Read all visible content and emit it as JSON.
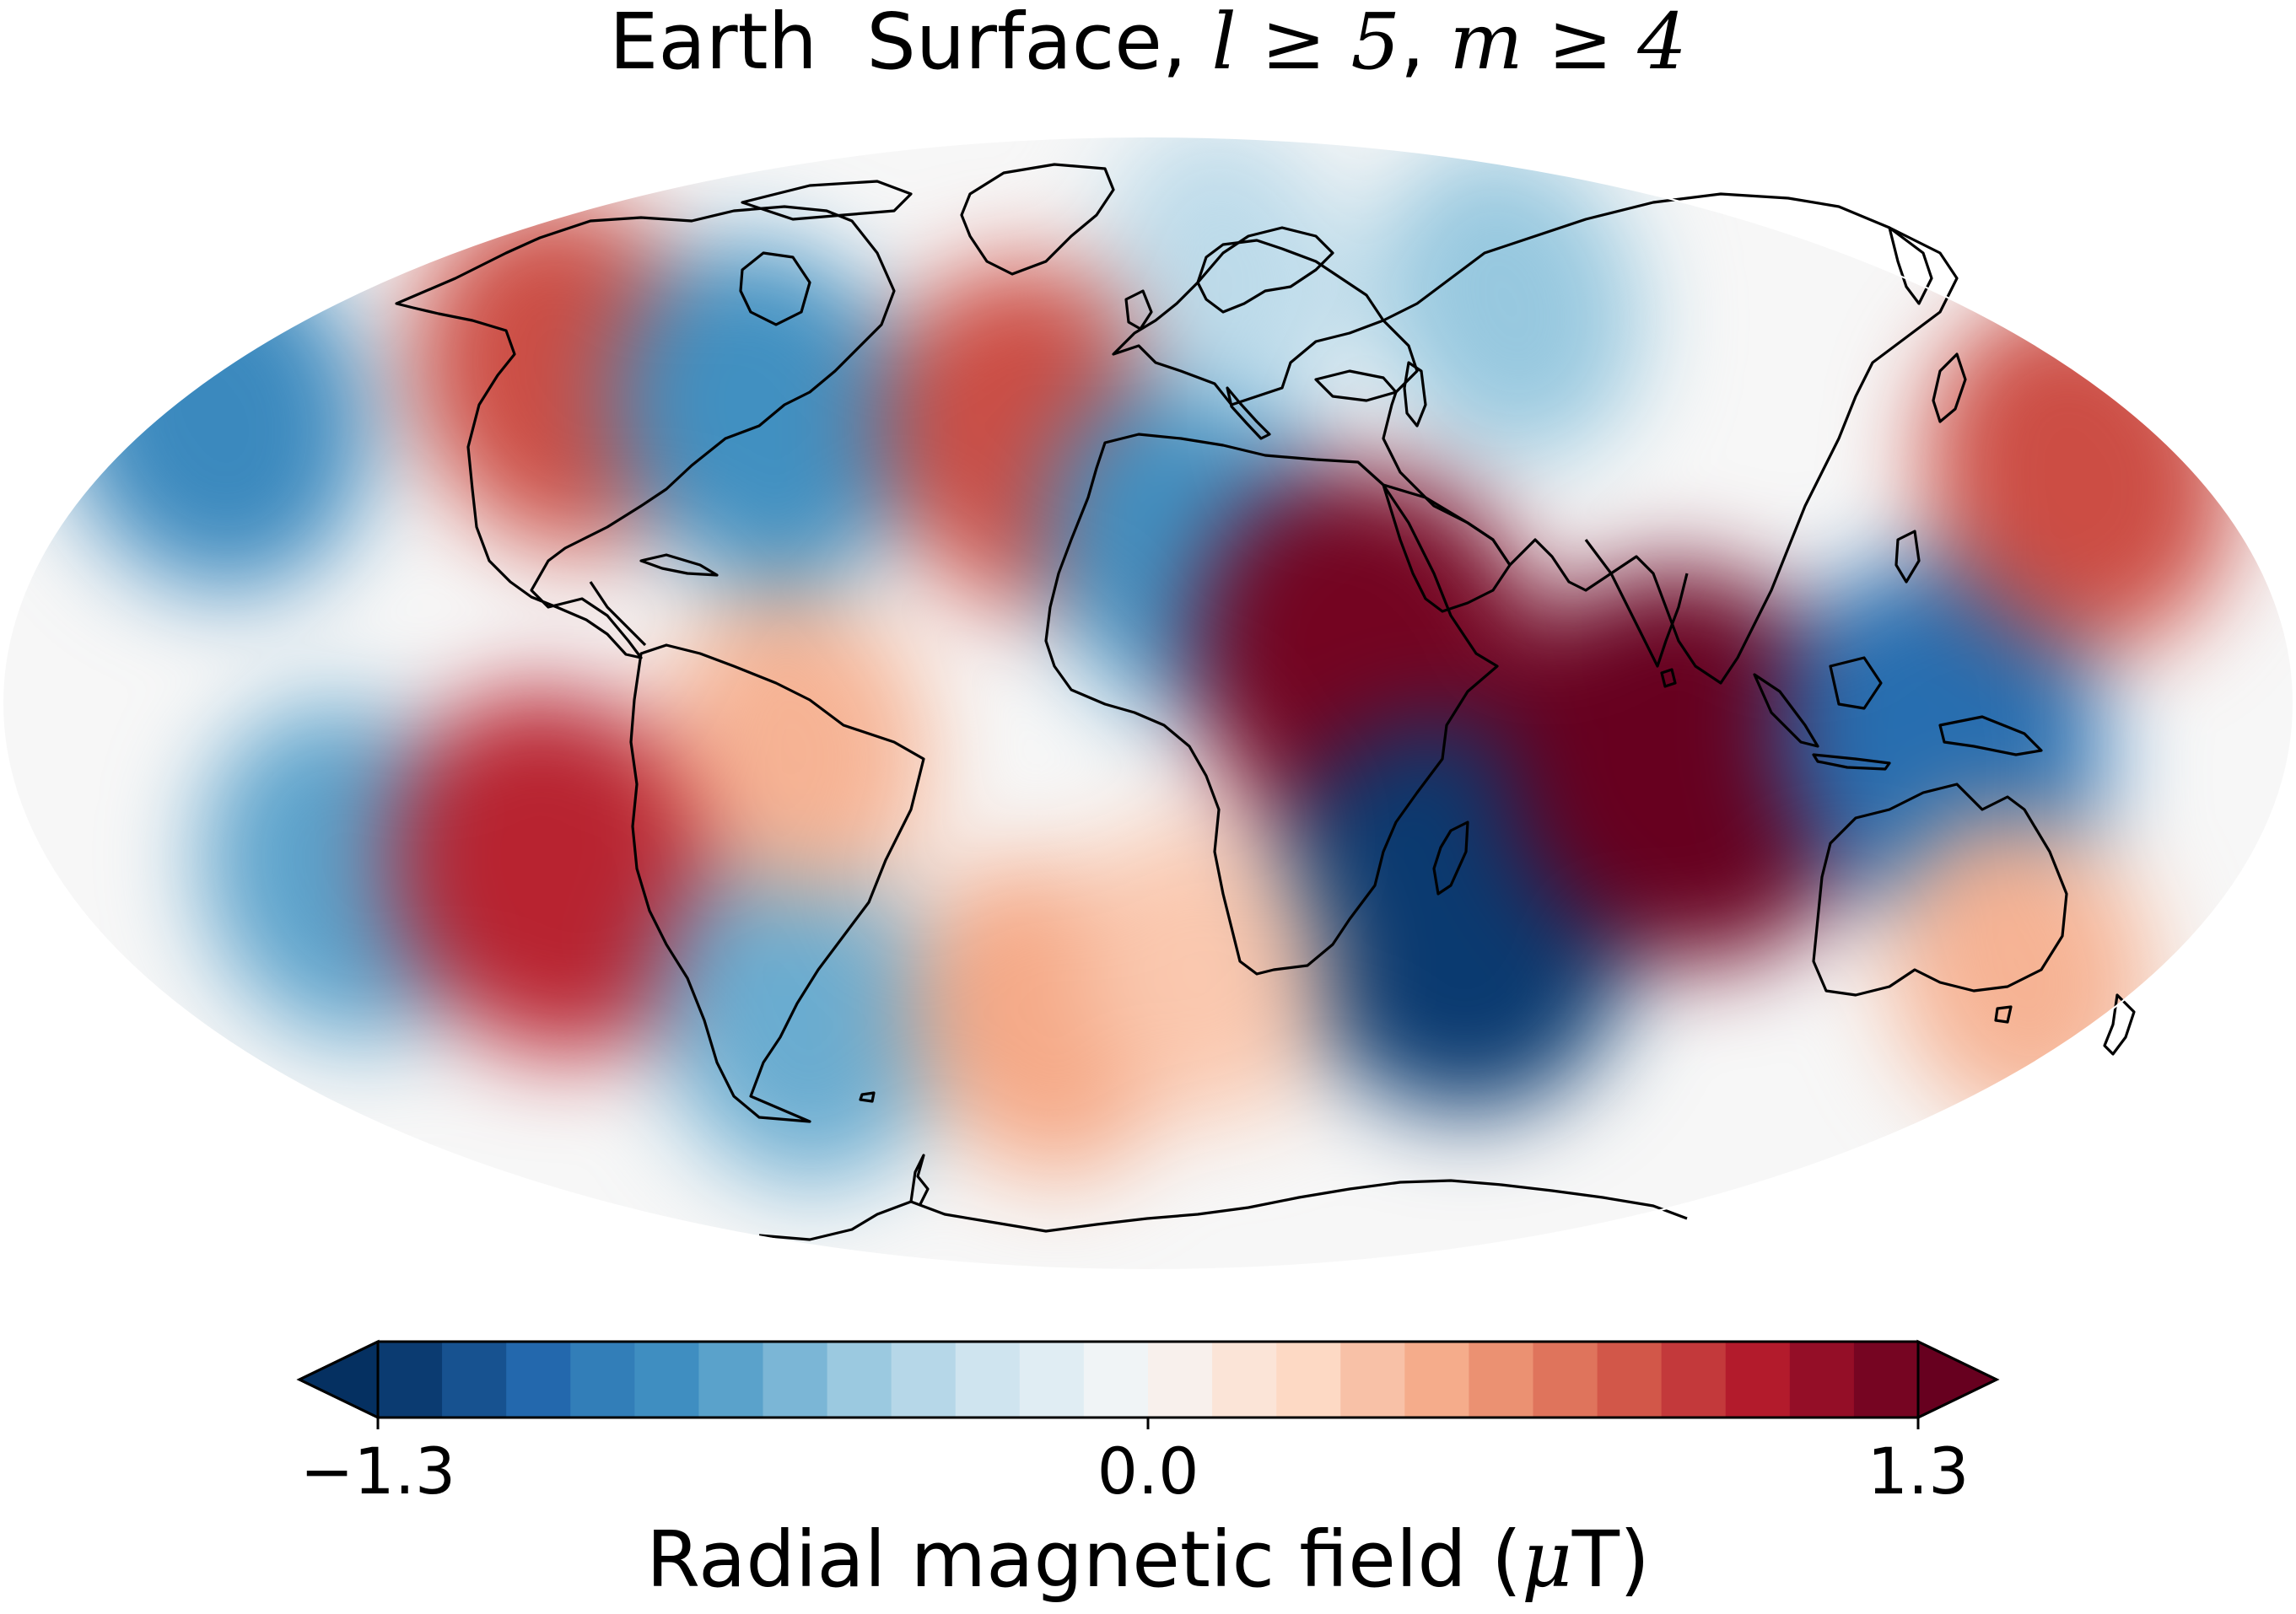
{
  "title": {
    "prefix": "Earth  Surface, ",
    "l_cond": "l ≥ 5",
    "sep": ", ",
    "m_cond": "m ≥ 4"
  },
  "map": {
    "projection": "mollweide",
    "field": "radial magnetic field, harmonic degrees l ≥ 5 and orders m ≥ 4",
    "coastlines": true,
    "blobs_lon_lat_value": [
      [
        -170,
        38,
        -0.85
      ],
      [
        -112,
        44,
        0.85
      ],
      [
        -70,
        38,
        -0.8
      ],
      [
        -20,
        35,
        0.85
      ],
      [
        8,
        20,
        -0.8
      ],
      [
        35,
        5,
        1.25
      ],
      [
        52,
        -28,
        -1.25
      ],
      [
        85,
        -8,
        1.3
      ],
      [
        125,
        -5,
        -1.0
      ],
      [
        160,
        30,
        0.85
      ],
      [
        80,
        55,
        -0.5
      ],
      [
        20,
        60,
        -0.35
      ],
      [
        -132,
        -22,
        -0.7
      ],
      [
        -98,
        -22,
        1.0
      ],
      [
        -66,
        -42,
        -0.65
      ],
      [
        -20,
        -42,
        0.5
      ],
      [
        10,
        -35,
        0.35
      ],
      [
        155,
        -35,
        0.45
      ],
      [
        -55,
        -5,
        0.45
      ]
    ]
  },
  "colorbar": {
    "cmap": "RdBu_r",
    "vmin": -1.3,
    "vmax": 1.3,
    "levels": 24,
    "extend": "both",
    "colors": [
      "#053061",
      "#134b87",
      "#2166ac",
      "#3480b9",
      "#4393c3",
      "#6aacd0",
      "#92c5de",
      "#b4d6e7",
      "#d1e5f0",
      "#e5eff4",
      "#f7f7f7",
      "#fae7dc",
      "#fddbc7",
      "#f8bfa4",
      "#f4a582",
      "#e58267",
      "#d6604d",
      "#c43c3c",
      "#b2182b",
      "#8a0b25",
      "#67001f"
    ],
    "ticks": [
      "−1.3",
      "0.0",
      "1.3"
    ],
    "label_text": "Radial magnetic field (",
    "label_mu": "μ",
    "label_unit": "T)"
  }
}
